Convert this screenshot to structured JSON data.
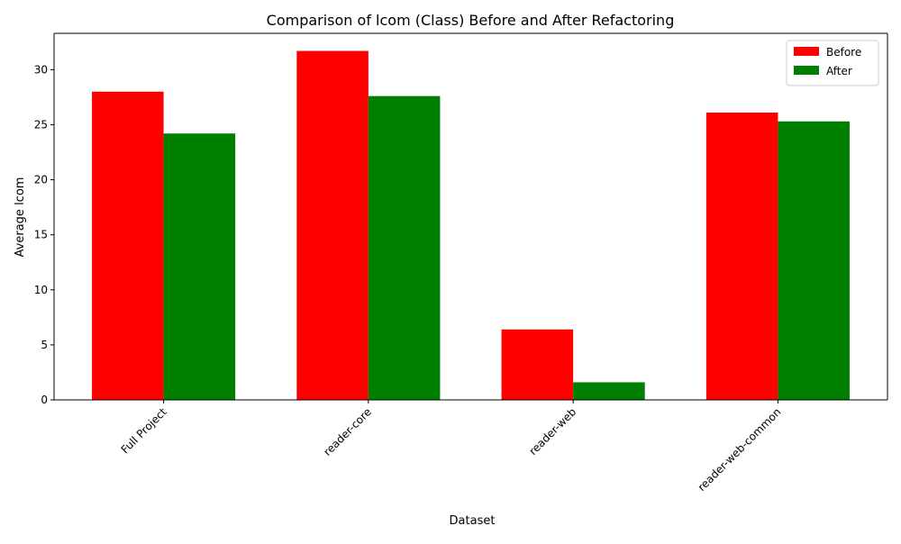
{
  "chart_data": {
    "type": "bar",
    "title": "Comparison of lcom (Class) Before and After Refactoring",
    "xlabel": "Dataset",
    "ylabel": "Average lcom",
    "categories": [
      "Full Project",
      "reader-core",
      "reader-web",
      "reader-web-common"
    ],
    "series": [
      {
        "name": "Before",
        "color": "#ff0000",
        "values": [
          28.0,
          31.7,
          6.4,
          26.1
        ]
      },
      {
        "name": "After",
        "color": "#008000",
        "values": [
          24.2,
          27.6,
          1.6,
          25.3
        ]
      }
    ],
    "ylim": [
      0,
      33.3
    ],
    "yticks": [
      0,
      5,
      10,
      15,
      20,
      25,
      30
    ],
    "grid": false,
    "legend_position": "top-right"
  }
}
